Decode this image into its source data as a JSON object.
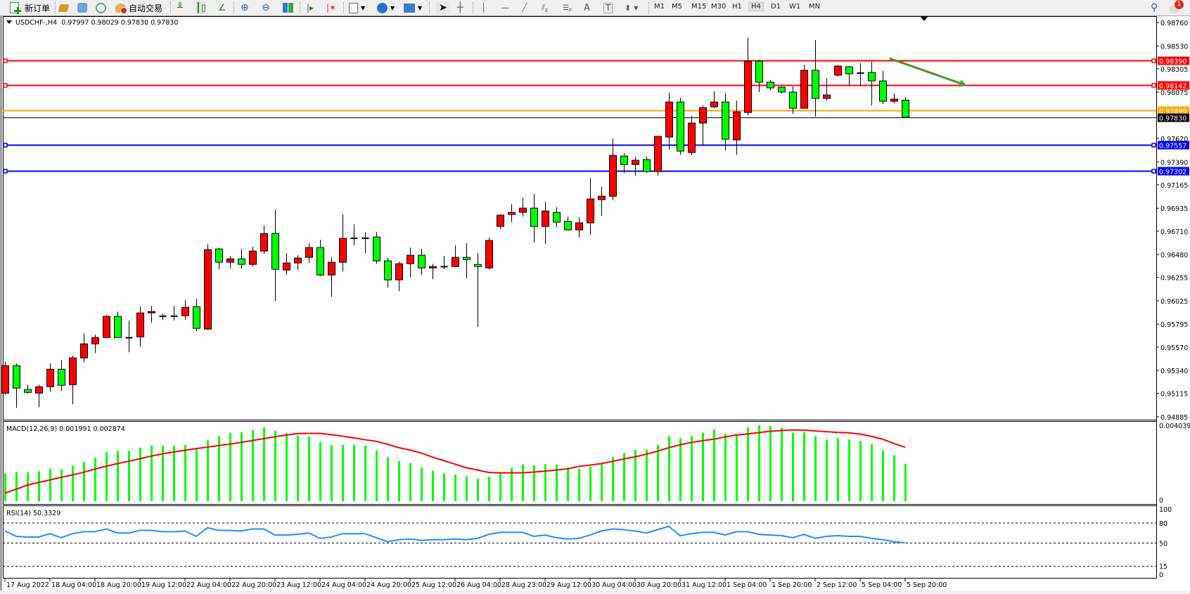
{
  "toolbar": {
    "new_order_label": "新订单",
    "auto_trading_label": "自动交易",
    "timeframes": [
      "M1",
      "M5",
      "M15",
      "M30",
      "H1",
      "H4",
      "D1",
      "W1",
      "MN"
    ],
    "active_timeframe": "H4",
    "tool_letters": {
      "channel": "E",
      "fibo": "F",
      "text": "A",
      "label": "T"
    },
    "notification_count": "1",
    "icons": [
      "new-order-icon",
      "history-icon",
      "market-watch-icon",
      "signal-icon",
      "auto-trading-icon",
      "bar-chart-icon",
      "candlestick-icon",
      "line-chart-icon",
      "zoom-in-icon",
      "zoom-out-icon",
      "tile-windows-icon",
      "chart-shift-icon",
      "autoscroll-icon",
      "indicators-icon",
      "periods-icon",
      "templates-icon",
      "cursor-icon",
      "crosshair-icon",
      "vertical-line-icon",
      "horizontal-line-icon",
      "trendline-icon",
      "equidistant-channel-icon",
      "fibonacci-icon",
      "text-icon",
      "text-label-icon",
      "arrows-icon",
      "search-icon",
      "notifications-icon"
    ]
  },
  "chart_header": {
    "symbol": "USDCHF-,H4",
    "ohlc": "0.97997 0.98029 0.97830 0.97830"
  },
  "colors": {
    "bull_body": "#ff0000",
    "bear_body": "#00ff00",
    "resistance": "#ff0000",
    "pivot": "#ffa500",
    "support": "#0000ff",
    "current_price": "#000000",
    "macd_histogram": "#00ff00",
    "macd_signal": "#ff0000",
    "rsi_line": "#1e90ff",
    "arrow": "#4a9a2a"
  },
  "chart_data": {
    "type": "candlestick",
    "symbol": "USDCHF-",
    "timeframe": "H4",
    "ohlc_order": [
      "open",
      "high",
      "low",
      "close"
    ],
    "candles": [
      [
        0.95118,
        0.95429,
        0.95105,
        0.95388
      ],
      [
        0.95388,
        0.95409,
        0.94973,
        0.95167
      ],
      [
        0.95153,
        0.95201,
        0.95112,
        0.95125
      ],
      [
        0.95118,
        0.95201,
        0.9498,
        0.95181
      ],
      [
        0.95181,
        0.95409,
        0.95132,
        0.95353
      ],
      [
        0.95353,
        0.95443,
        0.95139,
        0.95194
      ],
      [
        0.95201,
        0.95485,
        0.95008,
        0.95464
      ],
      [
        0.95464,
        0.95706,
        0.95423,
        0.95602
      ],
      [
        0.95602,
        0.95692,
        0.95512,
        0.95664
      ],
      [
        0.95664,
        0.95885,
        0.95664,
        0.95872
      ],
      [
        0.95872,
        0.9592,
        0.95664,
        0.95664
      ],
      [
        0.95664,
        0.9583,
        0.95519,
        0.9566
      ],
      [
        0.95671,
        0.95968,
        0.95575,
        0.95906
      ],
      [
        0.95906,
        0.95975,
        0.95809,
        0.9592
      ],
      [
        0.95872,
        0.95899,
        0.95837,
        0.95875
      ],
      [
        0.95875,
        0.95975,
        0.9583,
        0.95872
      ],
      [
        0.95879,
        0.96031,
        0.95837,
        0.95961
      ],
      [
        0.95968,
        0.96044,
        0.95727,
        0.95754
      ],
      [
        0.95747,
        0.96583,
        0.9574,
        0.96528
      ],
      [
        0.96535,
        0.96549,
        0.96335,
        0.96404
      ],
      [
        0.96404,
        0.96466,
        0.96342,
        0.96438
      ],
      [
        0.96438,
        0.96535,
        0.96342,
        0.96383
      ],
      [
        0.96383,
        0.96556,
        0.96362,
        0.96514
      ],
      [
        0.96514,
        0.96763,
        0.96487,
        0.96687
      ],
      [
        0.96687,
        0.96922,
        0.96024,
        0.96335
      ],
      [
        0.96328,
        0.96494,
        0.96279,
        0.96397
      ],
      [
        0.96397,
        0.96473,
        0.96328,
        0.96445
      ],
      [
        0.96452,
        0.9659,
        0.96397,
        0.96549
      ],
      [
        0.96549,
        0.96625,
        0.96266,
        0.96279
      ],
      [
        0.96279,
        0.96452,
        0.96065,
        0.96404
      ],
      [
        0.96404,
        0.96874,
        0.96314,
        0.96639
      ],
      [
        0.9664,
        0.96777,
        0.9657,
        0.96639
      ],
      [
        0.96642,
        0.96701,
        0.96494,
        0.96639
      ],
      [
        0.96652,
        0.96701,
        0.9639,
        0.96418
      ],
      [
        0.96418,
        0.96452,
        0.96155,
        0.96231
      ],
      [
        0.96231,
        0.96411,
        0.9612,
        0.9639
      ],
      [
        0.9639,
        0.96549,
        0.96259,
        0.96473
      ],
      [
        0.96473,
        0.96535,
        0.96279,
        0.96348
      ],
      [
        0.96348,
        0.9639,
        0.96238,
        0.96362
      ],
      [
        0.96362,
        0.96466,
        0.96335,
        0.96359
      ],
      [
        0.96362,
        0.9657,
        0.96355,
        0.96452
      ],
      [
        0.96452,
        0.9659,
        0.96245,
        0.96431
      ],
      [
        0.96383,
        0.96494,
        0.95768,
        0.96362
      ],
      [
        0.96348,
        0.96646,
        0.96335,
        0.96618
      ],
      [
        0.96756,
        0.96874,
        0.96728,
        0.96867
      ],
      [
        0.96874,
        0.96977,
        0.96798,
        0.96894
      ],
      [
        0.96894,
        0.97039,
        0.96853,
        0.96936
      ],
      [
        0.96936,
        0.97074,
        0.96597,
        0.96756
      ],
      [
        0.96756,
        0.96998,
        0.96583,
        0.96908
      ],
      [
        0.96894,
        0.96943,
        0.96749,
        0.96798
      ],
      [
        0.96805,
        0.96853,
        0.96715,
        0.96722
      ],
      [
        0.96722,
        0.96846,
        0.96646,
        0.96791
      ],
      [
        0.96791,
        0.97233,
        0.96673,
        0.97026
      ],
      [
        0.97019,
        0.97143,
        0.9686,
        0.97053
      ],
      [
        0.97053,
        0.9762,
        0.97012,
        0.97454
      ],
      [
        0.97447,
        0.97475,
        0.97281,
        0.97364
      ],
      [
        0.97364,
        0.9744,
        0.97254,
        0.97406
      ],
      [
        0.97413,
        0.9744,
        0.97281,
        0.97295
      ],
      [
        0.97295,
        0.97641,
        0.97254,
        0.97641
      ],
      [
        0.97634,
        0.98069,
        0.97509,
        0.97979
      ],
      [
        0.97979,
        0.98021,
        0.97461,
        0.97496
      ],
      [
        0.97482,
        0.97841,
        0.97461,
        0.97772
      ],
      [
        0.97772,
        0.97945,
        0.97551,
        0.97924
      ],
      [
        0.97931,
        0.98083,
        0.97917,
        0.97979
      ],
      [
        0.97979,
        0.98069,
        0.97502,
        0.97613
      ],
      [
        0.97606,
        0.97993,
        0.97461,
        0.97882
      ],
      [
        0.97876,
        0.98608,
        0.97848,
        0.9838
      ],
      [
        0.9838,
        0.98394,
        0.98076,
        0.98173
      ],
      [
        0.98173,
        0.98193,
        0.9809,
        0.98117
      ],
      [
        0.98124,
        0.98131,
        0.98062,
        0.98076
      ],
      [
        0.98076,
        0.98131,
        0.97862,
        0.97917
      ],
      [
        0.97917,
        0.98345,
        0.97917,
        0.9829
      ],
      [
        0.9829,
        0.98587,
        0.97834,
        0.98014
      ],
      [
        0.98014,
        0.98214,
        0.97993,
        0.98048
      ],
      [
        0.98242,
        0.98339,
        0.98228,
        0.98332
      ],
      [
        0.98325,
        0.98332,
        0.98138,
        0.98256
      ],
      [
        0.98256,
        0.98359,
        0.98138,
        0.98269
      ],
      [
        0.98269,
        0.98373,
        0.97945,
        0.98186
      ],
      [
        0.98186,
        0.98283,
        0.97958,
        0.97986
      ],
      [
        0.97986,
        0.98062,
        0.97965,
        0.98007
      ],
      [
        0.97997,
        0.98029,
        0.9783,
        0.9783
      ]
    ],
    "price_axis": {
      "range": [
        0.94885,
        0.9876
      ],
      "ticks": [
        "0.98760",
        "0.98530",
        "0.98305",
        "0.98075",
        "0.97620",
        "0.97390",
        "0.97165",
        "0.96935",
        "0.96710",
        "0.96480",
        "0.96255",
        "0.96025",
        "0.95795",
        "0.95570",
        "0.95340",
        "0.95115",
        "0.94885"
      ]
    },
    "time_axis": {
      "label_every_bars": 4,
      "labels": [
        "17 Aug 2022",
        "18 Aug 04:00",
        "18 Aug 20:00",
        "19 Aug 12:00",
        "22 Aug 04:00",
        "22 Aug 20:00",
        "23 Aug 12:00",
        "24 Aug 04:00",
        "24 Aug 20:00",
        "25 Aug 12:00",
        "26 Aug 04:00",
        "28 Aug 23:00",
        "29 Aug 12:00",
        "30 Aug 04:00",
        "30 Aug 20:00",
        "31 Aug 12:00",
        "1 Sep 04:00",
        "1 Sep 20:00",
        "2 Sep 12:00",
        "5 Sep 04:00",
        "5 Sep 20:00"
      ]
    },
    "levels": [
      {
        "price": 0.9839,
        "label": "0.98390",
        "color": "#ff0000",
        "kind": "resistance"
      },
      {
        "price": 0.98142,
        "label": "0.98142",
        "color": "#ff0000",
        "kind": "resistance"
      },
      {
        "price": 0.97899,
        "label": "0.97899",
        "color": "#ffa500",
        "kind": "pivot"
      },
      {
        "price": 0.9783,
        "label": "0.97830",
        "color": "#000000",
        "kind": "current-price"
      },
      {
        "price": 0.97557,
        "label": "0.97557",
        "color": "#0000ff",
        "kind": "support"
      },
      {
        "price": 0.97302,
        "label": "0.97302",
        "color": "#0000ff",
        "kind": "support"
      }
    ],
    "arrow": {
      "from_bar": 78.6,
      "from_price": 0.98408,
      "to_bar": 85.5,
      "to_price": 0.98138,
      "color": "#4a9a2a"
    },
    "macd": {
      "title": "MACD(12,26,9) 0.001991 0.002874",
      "axis_max_label": "0.004039",
      "axis_zero_label": "0",
      "range": [
        0,
        0.004039
      ],
      "histogram": [
        0.00148,
        0.00155,
        0.00155,
        0.00159,
        0.00173,
        0.00169,
        0.00188,
        0.00209,
        0.00231,
        0.00263,
        0.00267,
        0.00267,
        0.00285,
        0.00296,
        0.00296,
        0.00296,
        0.00299,
        0.00278,
        0.00325,
        0.00346,
        0.00364,
        0.00368,
        0.00379,
        0.00393,
        0.00375,
        0.00361,
        0.0035,
        0.00343,
        0.00314,
        0.00299,
        0.00299,
        0.00299,
        0.00296,
        0.0027,
        0.00234,
        0.00213,
        0.00202,
        0.0018,
        0.00162,
        0.00148,
        0.00141,
        0.00133,
        0.00119,
        0.0013,
        0.00148,
        0.00177,
        0.00195,
        0.00191,
        0.00198,
        0.00195,
        0.0018,
        0.00173,
        0.00184,
        0.00198,
        0.00234,
        0.00256,
        0.00274,
        0.00274,
        0.00299,
        0.00346,
        0.00335,
        0.00346,
        0.00364,
        0.00382,
        0.00357,
        0.00357,
        0.00393,
        0.00404,
        0.004,
        0.00389,
        0.00364,
        0.00368,
        0.00346,
        0.00328,
        0.00335,
        0.00328,
        0.00321,
        0.00303,
        0.0027,
        0.00245,
        0.001991
      ],
      "signal": [
        0.00043,
        0.00064,
        0.00086,
        0.001,
        0.00113,
        0.00127,
        0.0014,
        0.00154,
        0.00171,
        0.00186,
        0.002,
        0.00213,
        0.00226,
        0.0024,
        0.00252,
        0.00262,
        0.00271,
        0.0028,
        0.00288,
        0.00296,
        0.00304,
        0.00313,
        0.00323,
        0.00333,
        0.00343,
        0.00352,
        0.0036,
        0.00361,
        0.00361,
        0.00354,
        0.00346,
        0.00337,
        0.00327,
        0.00319,
        0.00303,
        0.00285,
        0.00272,
        0.00256,
        0.00235,
        0.00216,
        0.00197,
        0.00178,
        0.00166,
        0.00153,
        0.00151,
        0.00151,
        0.00151,
        0.00155,
        0.0016,
        0.00166,
        0.00172,
        0.00185,
        0.00192,
        0.002,
        0.00212,
        0.00225,
        0.00236,
        0.0025,
        0.00266,
        0.00285,
        0.003,
        0.00313,
        0.00322,
        0.0033,
        0.00342,
        0.00352,
        0.00358,
        0.00365,
        0.00372,
        0.00376,
        0.00379,
        0.00378,
        0.00374,
        0.0037,
        0.00366,
        0.00364,
        0.00357,
        0.00345,
        0.0033,
        0.00307,
        0.002874
      ]
    },
    "rsi": {
      "title": "RSI(14) 50.3329",
      "range": [
        0,
        100
      ],
      "axis_labels": [
        "100",
        "80",
        "50",
        "15",
        "0"
      ],
      "levels": [
        80,
        50,
        15
      ],
      "values": [
        68,
        60,
        59,
        59,
        64,
        58,
        64,
        67,
        67,
        71,
        65,
        65,
        69,
        69,
        67,
        67,
        68,
        60,
        73,
        69,
        69,
        68,
        71,
        71,
        62,
        62,
        63,
        65,
        57,
        59,
        64,
        64,
        64,
        58,
        52,
        55,
        56,
        54,
        55,
        55,
        56,
        55,
        57,
        63,
        66,
        66,
        66,
        60,
        62,
        58,
        56,
        57,
        62,
        68,
        71,
        70,
        68,
        65,
        70,
        75,
        61,
        64,
        66,
        66,
        62,
        67,
        67,
        63,
        62,
        61,
        58,
        63,
        57,
        60,
        61,
        60,
        60,
        57,
        55,
        52,
        50.3329
      ]
    }
  }
}
